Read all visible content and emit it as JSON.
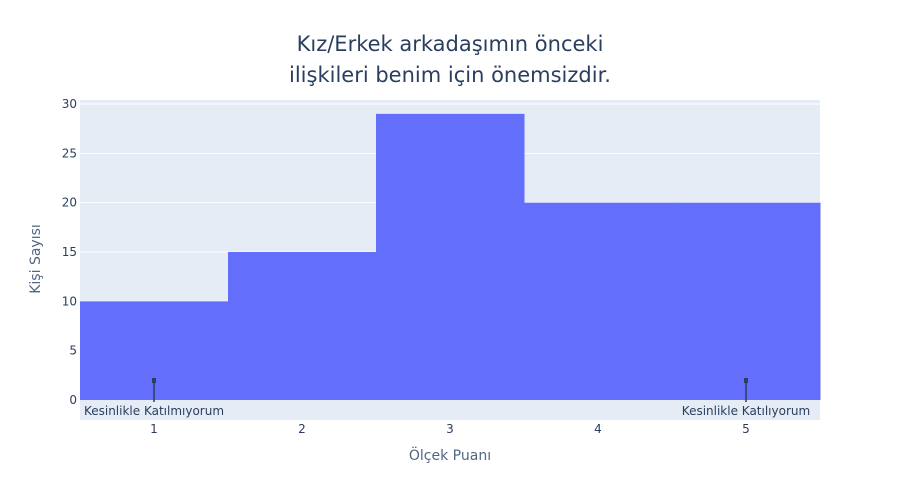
{
  "chart_data": {
    "type": "bar",
    "title_lines": [
      "Kız/Erkek arkadaşımın önceki",
      "ilişkileri benim için önemsizdir."
    ],
    "xlabel": "Ölçek Puanı",
    "ylabel": "Kişi Sayısı",
    "categories": [
      1,
      2,
      3,
      4,
      5
    ],
    "values": [
      10,
      15,
      29,
      20,
      20
    ],
    "ylim": [
      0,
      30
    ],
    "yticks": [
      0,
      5,
      10,
      15,
      20,
      25,
      30
    ],
    "bar_color": "#636efa",
    "plot_bg": "#e5ecf6",
    "grid": true,
    "annotations": [
      {
        "x": 1,
        "text": "Kesinlikle Katılmıyorum"
      },
      {
        "x": 5,
        "text": "Kesinlikle Katılıyorum"
      }
    ]
  }
}
